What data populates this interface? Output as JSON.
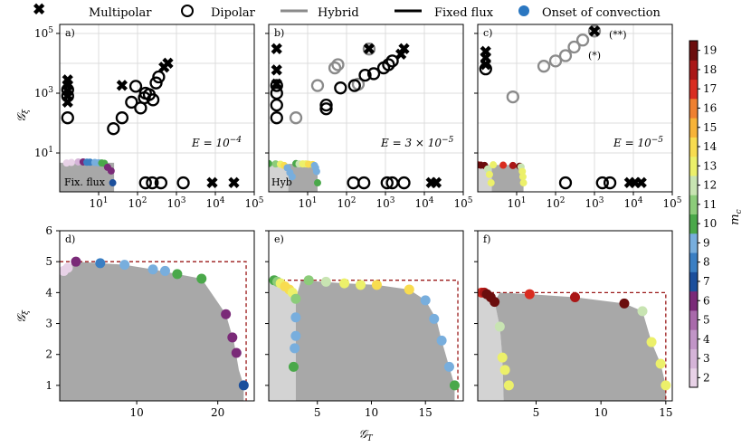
{
  "legend": {
    "multipolar": "Multipolar",
    "dipolar": "Dipolar",
    "hybrid": "Hybrid",
    "fixed_flux": "Fixed flux",
    "onset": "Onset of convection"
  },
  "colorbar": {
    "label": "m_c",
    "ticks": [
      "2",
      "3",
      "4",
      "5",
      "6",
      "7",
      "8",
      "9",
      "10",
      "11",
      "12",
      "13",
      "14",
      "15",
      "16",
      "17",
      "18",
      "19"
    ],
    "colors": [
      "#e8d2e7",
      "#d5b4d8",
      "#c195c7",
      "#a96aab",
      "#7a2a78",
      "#1c4f9c",
      "#3b7fc3",
      "#78aedd",
      "#4aa84a",
      "#8ccc7a",
      "#c8e4b2",
      "#ecf06a",
      "#f8dc50",
      "#f7b338",
      "#ef8030",
      "#d92c20",
      "#aa1717",
      "#6b0d0d"
    ]
  },
  "panel_labels": [
    "a)",
    "b)",
    "c)",
    "d)",
    "e)",
    "f)"
  ],
  "annotations": {
    "a": {
      "E": "E = 10^{-4}",
      "region": "Fix. flux"
    },
    "b": {
      "E": "E = 3 × 10^{-5}",
      "region": "Hyb"
    },
    "c": {
      "E": "E = 10^{-5}",
      "star1": "(*)",
      "star2": "(**)"
    }
  },
  "axes": {
    "x_label_bottom": "𝒢_T",
    "y_label_top": "𝒢_ξ",
    "y_label_bottom": "𝒢_ξ",
    "top_xticks": [
      "10^1",
      "10^2",
      "10^3",
      "10^4",
      "10^5"
    ],
    "top_yticks": [
      "10^1",
      "10^3",
      "10^5"
    ],
    "bottom_yticks": [
      "1",
      "2",
      "3",
      "4",
      "5",
      "6"
    ],
    "bottom_xticks": [
      [
        "10",
        "20"
      ],
      [
        "5",
        "10",
        "15"
      ],
      [
        "5",
        "10",
        "15"
      ]
    ]
  },
  "chart_data": [
    {
      "panel": "a",
      "type": "scatter",
      "xscale": "log",
      "yscale": "log",
      "xlim": [
        1,
        100000
      ],
      "ylim": [
        0.5,
        200000
      ],
      "grid": true,
      "multipolar": [
        [
          1.6,
          500
        ],
        [
          1.6,
          800
        ],
        [
          1.6,
          1200
        ],
        [
          1.6,
          1900
        ],
        [
          1.6,
          2700
        ],
        [
          40,
          1800
        ],
        [
          480,
          7200
        ],
        [
          600,
          10000
        ],
        [
          8300,
          1
        ],
        [
          30000,
          1
        ]
      ],
      "dipolar": [
        [
          1.6,
          150
        ],
        [
          1.6,
          800
        ],
        [
          1.6,
          1300
        ],
        [
          24,
          65
        ],
        [
          40,
          150
        ],
        [
          70,
          500
        ],
        [
          90,
          1700
        ],
        [
          120,
          320
        ],
        [
          150,
          700
        ],
        [
          160,
          1000
        ],
        [
          200,
          900
        ],
        [
          250,
          600
        ],
        [
          300,
          2200
        ],
        [
          350,
          3500
        ],
        [
          160,
          1
        ],
        [
          240,
          1
        ],
        [
          400,
          1
        ],
        [
          1500,
          1
        ]
      ],
      "hybrid": [],
      "onset_gt": [
        1.5,
        2,
        3,
        4,
        5,
        6,
        8,
        10,
        12,
        14,
        17,
        21,
        23
      ],
      "onset_gxi": [
        4.6,
        4.8,
        5,
        5,
        4.9,
        4.9,
        4.8,
        4.7,
        4.6,
        4.5,
        3.3,
        2.5,
        1
      ],
      "onset_mc": [
        2,
        2,
        3,
        6,
        8,
        8,
        9,
        9,
        10,
        10,
        6,
        6,
        7
      ],
      "fixed_flux_region": "Fix. flux"
    },
    {
      "panel": "b",
      "type": "scatter",
      "xscale": "log",
      "yscale": "log",
      "xlim": [
        1,
        100000
      ],
      "ylim": [
        0.5,
        200000
      ],
      "grid": true,
      "multipolar": [
        [
          1.6,
          30000
        ],
        [
          1.6,
          6000
        ],
        [
          1.6,
          2000
        ],
        [
          2500,
          20000
        ],
        [
          3000,
          30000
        ],
        [
          15000,
          1
        ],
        [
          20000,
          1
        ]
      ],
      "dipolar": [
        [
          1.6,
          150
        ],
        [
          1.6,
          400
        ],
        [
          1.6,
          1000
        ],
        [
          1.6,
          1800
        ],
        [
          30,
          300
        ],
        [
          30,
          400
        ],
        [
          70,
          1500
        ],
        [
          160,
          1800
        ],
        [
          300,
          4000
        ],
        [
          500,
          4500
        ],
        [
          900,
          7000
        ],
        [
          1200,
          9000
        ],
        [
          1500,
          12000
        ],
        [
          150,
          1
        ],
        [
          280,
          1
        ],
        [
          1100,
          1
        ],
        [
          1500,
          1
        ],
        [
          3000,
          1
        ]
      ],
      "hybrid": [
        [
          5,
          150
        ],
        [
          18,
          1800
        ],
        [
          50,
          7000
        ],
        [
          60,
          9000
        ],
        [
          200,
          2000
        ],
        [
          380,
          30000
        ]
      ],
      "onset_gt": [
        1,
        1.5,
        2,
        2.5,
        3,
        3.5,
        4,
        5,
        6,
        7.5,
        9,
        10.5,
        13.5,
        15,
        16,
        17,
        18
      ],
      "onset_gxi": [
        4.4,
        4.3,
        4.2,
        3.8,
        3.2,
        2.2,
        1.6,
        4.4,
        4.3,
        4.3,
        4.3,
        4.2,
        4.1,
        3.8,
        3.2,
        2.4,
        1
      ],
      "onset_mc": [
        10,
        11,
        13,
        14,
        9,
        9,
        9,
        10,
        12,
        13,
        13,
        14,
        14,
        9,
        9,
        9,
        10
      ],
      "hybrid_region": "Hyb"
    },
    {
      "panel": "c",
      "type": "scatter",
      "xscale": "log",
      "yscale": "log",
      "xlim": [
        1,
        100000
      ],
      "ylim": [
        0.5,
        200000
      ],
      "grid": true,
      "multipolar": [
        [
          1.6,
          25000
        ],
        [
          1.6,
          15000
        ],
        [
          1.6,
          9000
        ],
        [
          8000,
          1
        ],
        [
          11000,
          1
        ],
        [
          16000,
          1
        ]
      ],
      "dipolar": [
        [
          1.6,
          6500
        ],
        [
          180,
          1
        ],
        [
          1600,
          1
        ],
        [
          2500,
          1
        ]
      ],
      "hybrid": [
        [
          8,
          750
        ],
        [
          50,
          8000
        ],
        [
          100,
          12000
        ],
        [
          180,
          18000
        ],
        [
          300,
          35000
        ],
        [
          500,
          60000
        ],
        [
          1000,
          120000
        ]
      ],
      "onset_gt": [
        0.8,
        1,
        1.2,
        1.5,
        1.8,
        2,
        2.2,
        2.5,
        4.5,
        8,
        12,
        13,
        14,
        14.5,
        15
      ],
      "onset_gxi": [
        4,
        4,
        3.9,
        3.8,
        2.9,
        1.9,
        1,
        4,
        3.9,
        3.8,
        3.6,
        3.4,
        2.4,
        1.6,
        1
      ],
      "onset_mc": [
        17,
        18,
        19,
        19,
        12,
        13,
        13,
        13,
        17,
        18,
        19,
        12,
        13,
        13,
        13
      ],
      "stars": [
        "(*)",
        "(**)"
      ]
    },
    {
      "panel": "d",
      "type": "scatter",
      "xscale": "linear",
      "yscale": "linear",
      "xlim": [
        0.5,
        24.5
      ],
      "ylim": [
        0.5,
        6
      ],
      "grid": false,
      "onset_gt": [
        1,
        1.5,
        2.5,
        5.5,
        8.5,
        12,
        13.5,
        15,
        18,
        21,
        21.8,
        22.3,
        23.2
      ],
      "onset_gxi": [
        4.7,
        4.8,
        5,
        4.95,
        4.9,
        4.75,
        4.7,
        4.6,
        4.45,
        3.3,
        2.55,
        2.05,
        1
      ],
      "onset_mc": [
        2,
        2,
        6,
        8,
        9,
        9,
        9,
        10,
        10,
        6,
        6,
        6,
        7
      ],
      "boundary_box": [
        23.5,
        5
      ]
    },
    {
      "panel": "e",
      "type": "scatter",
      "xscale": "linear",
      "yscale": "linear",
      "xlim": [
        0.5,
        18.5
      ],
      "ylim": [
        0.5,
        6
      ],
      "grid": false,
      "onset_gt": [
        1,
        1.3,
        1.6,
        2,
        2.4,
        2.7,
        3,
        3,
        3,
        2.9,
        2.8,
        4.2,
        5.8,
        7.5,
        9,
        10.5,
        13.5,
        15,
        15.8,
        16.5,
        17.2,
        17.7
      ],
      "onset_gxi": [
        4.4,
        4.35,
        4.3,
        4.2,
        4.1,
        4,
        3.8,
        3.2,
        2.6,
        2.2,
        1.6,
        4.4,
        4.35,
        4.3,
        4.25,
        4.25,
        4.1,
        3.75,
        3.15,
        2.45,
        1.6,
        1
      ],
      "onset_mc": [
        10,
        11,
        13,
        14,
        14,
        13,
        11,
        9,
        9,
        9,
        10,
        11,
        12,
        13,
        13,
        14,
        14,
        9,
        9,
        9,
        9,
        10
      ],
      "boundary_box": [
        18,
        4.4
      ]
    },
    {
      "panel": "f",
      "type": "scatter",
      "xscale": "linear",
      "yscale": "linear",
      "xlim": [
        0.5,
        15.5
      ],
      "ylim": [
        0.5,
        6
      ],
      "grid": false,
      "onset_gt": [
        0.8,
        1,
        1.2,
        1.5,
        1.8,
        2.2,
        2.4,
        2.6,
        2.9,
        4.5,
        8,
        11.8,
        13.2,
        13.9,
        14.6,
        15
      ],
      "onset_gxi": [
        4,
        4,
        3.95,
        3.85,
        3.7,
        2.9,
        1.9,
        1.5,
        1,
        3.95,
        3.85,
        3.65,
        3.4,
        2.4,
        1.7,
        1
      ],
      "onset_mc": [
        17,
        18,
        19,
        19,
        19,
        12,
        13,
        13,
        13,
        17,
        18,
        19,
        12,
        13,
        13,
        13
      ],
      "boundary_box": [
        15,
        4
      ]
    }
  ]
}
